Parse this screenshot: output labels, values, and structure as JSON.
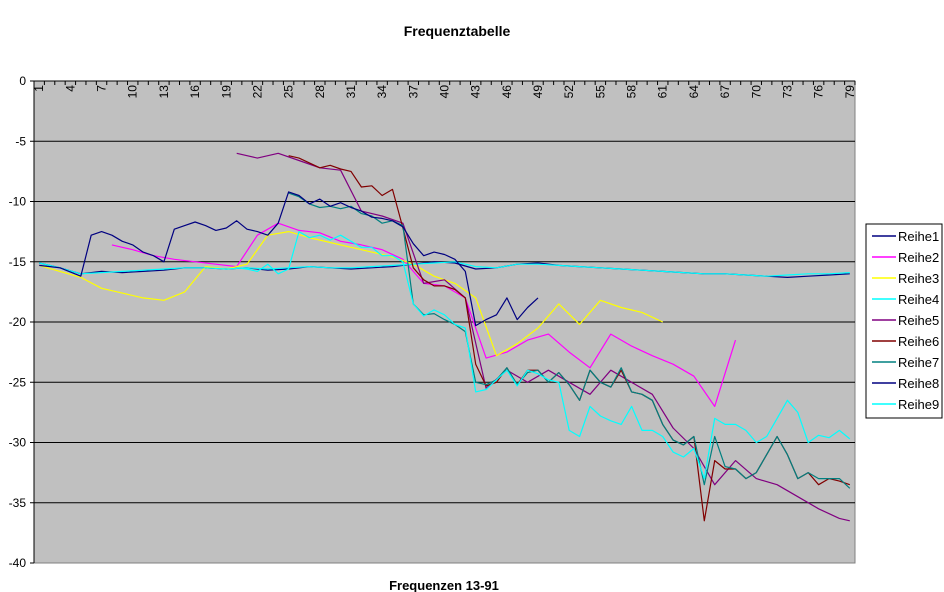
{
  "chart_data": {
    "type": "line",
    "title": "Frequenztabelle",
    "xlabel": "Frequenzen 13-91",
    "ylabel": "",
    "ylim": [
      -40,
      0
    ],
    "yticks": [
      0,
      -5,
      -10,
      -15,
      -20,
      -25,
      -30,
      -35,
      -40
    ],
    "xlim": [
      1,
      79
    ],
    "xticks": [
      1,
      4,
      7,
      10,
      13,
      16,
      19,
      22,
      25,
      28,
      31,
      34,
      37,
      40,
      43,
      46,
      49,
      52,
      55,
      58,
      61,
      64,
      67,
      70,
      73,
      76,
      79
    ],
    "grid": "horizontal",
    "legend_position": "right",
    "series": [
      {
        "name": "Reihe1",
        "color": "#000080",
        "x": [
          1,
          3,
          5,
          7,
          9,
          11,
          13,
          15,
          17,
          19,
          21,
          23,
          25,
          27,
          29,
          31,
          33,
          35,
          37,
          39,
          41,
          43,
          45,
          47,
          49,
          51,
          53,
          55,
          57,
          59,
          61,
          63,
          65,
          67,
          69,
          71,
          73,
          75,
          77,
          79
        ],
        "y": [
          -15.1,
          -15.5,
          -16,
          -15.8,
          -15.9,
          -15.8,
          -15.7,
          -15.5,
          -15.5,
          -15.6,
          -15.5,
          -15.7,
          -15.6,
          -15.4,
          -15.5,
          -15.6,
          -15.5,
          -15.4,
          -15.2,
          -15,
          -15.1,
          -15.6,
          -15.5,
          -15.2,
          -15.1,
          -15.3,
          -15.4,
          -15.5,
          -15.6,
          -15.7,
          -15.8,
          -15.9,
          -16,
          -16,
          -16.1,
          -16.2,
          -16.3,
          -16.2,
          -16.1,
          -16
        ]
      },
      {
        "name": "Reihe2",
        "color": "#ff00ff",
        "x": [
          8,
          10,
          12,
          14,
          16,
          18,
          20,
          22,
          24,
          26,
          28,
          30,
          32,
          34,
          36,
          38,
          40,
          42,
          44,
          46,
          48,
          50,
          52,
          54,
          56,
          58,
          60,
          62,
          64,
          66,
          68
        ],
        "y": [
          -13.6,
          -14.0,
          -14.5,
          -14.8,
          -15.0,
          -15.2,
          -15.4,
          -12.8,
          -11.8,
          -12.4,
          -12.6,
          -13.3,
          -13.6,
          -14.0,
          -14.8,
          -16.8,
          -17.0,
          -18.0,
          -23.0,
          -22.5,
          -21.5,
          -21.0,
          -22.5,
          -23.8,
          -21.0,
          -22.0,
          -22.8,
          -23.5,
          -24.5,
          -27.0,
          -21.5
        ]
      },
      {
        "name": "Reihe3",
        "color": "#ffff00",
        "x": [
          1,
          3,
          5,
          7,
          9,
          11,
          13,
          15,
          17,
          19,
          21,
          23,
          25,
          27,
          29,
          31,
          33,
          35,
          37,
          39,
          41,
          43,
          45,
          47,
          49,
          51,
          53,
          55,
          57,
          59,
          61
        ],
        "y": [
          -15.3,
          -15.8,
          -16.3,
          -17.2,
          -17.6,
          -18.0,
          -18.2,
          -17.5,
          -15.4,
          -15.6,
          -15.2,
          -12.8,
          -12.5,
          -13.0,
          -13.4,
          -13.8,
          -14.2,
          -14.6,
          -15.2,
          -16.2,
          -16.8,
          -18.0,
          -22.8,
          -21.8,
          -20.5,
          -18.5,
          -20.2,
          -18.2,
          -18.8,
          -19.2,
          -20.0
        ]
      },
      {
        "name": "Reihe4",
        "color": "#00ffff",
        "x": [
          1,
          3,
          5,
          7,
          9,
          11,
          13,
          15,
          17,
          19,
          21,
          23,
          25,
          27,
          29,
          31,
          33,
          35,
          37,
          39,
          41,
          43,
          45,
          47,
          49,
          51,
          53,
          55,
          57,
          59,
          61,
          63,
          65,
          67,
          69,
          71,
          73,
          75,
          77,
          79
        ],
        "y": [
          -15.1,
          -15.5,
          -16,
          -15.9,
          -15.8,
          -15.7,
          -15.6,
          -15.5,
          -15.5,
          -15.6,
          -15.5,
          -15.6,
          -15.5,
          -15.4,
          -15.5,
          -15.5,
          -15.4,
          -15.3,
          -15.2,
          -15.1,
          -15.0,
          -15.4,
          -15.5,
          -15.2,
          -15.2,
          -15.3,
          -15.4,
          -15.5,
          -15.6,
          -15.7,
          -15.8,
          -15.9,
          -16,
          -16,
          -16.1,
          -16.2,
          -16.1,
          -16.0,
          -16.0,
          -15.9
        ]
      },
      {
        "name": "Reihe5",
        "color": "#800080",
        "x": [
          20,
          22,
          24,
          26,
          28,
          30,
          32,
          34,
          36,
          38,
          40,
          42,
          44,
          46,
          48,
          50,
          52,
          54,
          56,
          58,
          60,
          62,
          64,
          66,
          68,
          70,
          72,
          74,
          76,
          78,
          79
        ],
        "y": [
          -6.0,
          -6.4,
          -6.0,
          -6.6,
          -7.2,
          -7.4,
          -10.8,
          -11.2,
          -11.8,
          -16.8,
          -16.5,
          -18.0,
          -25.5,
          -24.0,
          -25.0,
          -24.0,
          -25.0,
          -26.0,
          -24.0,
          -25.0,
          -26.0,
          -28.8,
          -30.5,
          -33.5,
          -31.5,
          -33.0,
          -33.5,
          -34.5,
          -35.5,
          -36.3,
          -36.5
        ]
      },
      {
        "name": "Reihe6",
        "color": "#800000",
        "x": [
          25,
          26,
          27,
          28,
          29,
          30,
          31,
          32,
          33,
          34,
          35,
          36,
          37,
          38,
          39,
          40,
          41,
          42,
          43,
          44,
          45,
          46,
          47,
          48,
          49,
          50,
          51,
          52,
          53,
          54,
          55,
          56,
          57,
          58,
          59,
          60,
          61,
          62,
          63,
          64,
          65,
          66,
          67,
          68,
          69,
          70,
          71,
          72,
          73,
          74,
          75,
          76,
          77,
          78,
          79
        ],
        "y": [
          -6.2,
          -6.4,
          -6.8,
          -7.2,
          -7.0,
          -7.3,
          -7.5,
          -8.8,
          -8.7,
          -9.5,
          -9.0,
          -12.2,
          -15.5,
          -16.5,
          -17.0,
          -17.0,
          -17.3,
          -18.0,
          -23.5,
          -25.3,
          -25.0,
          -23.8,
          -25.2,
          -24.0,
          -24.0,
          -25.0,
          -24.2,
          -25.2,
          -26.5,
          -24.0,
          -25.0,
          -25.4,
          -24.0,
          -25.8,
          -26.0,
          -26.5,
          -28.5,
          -29.8,
          -30.2,
          -29.5,
          -36.5,
          -31.5,
          -32.2,
          -32.2,
          -33.0,
          -32.5,
          -31.0,
          -29.5,
          -31.0,
          -33.0,
          -32.5,
          -33.5,
          -33.0,
          -33.2,
          -33.5
        ]
      },
      {
        "name": "Reihe7",
        "color": "#008080",
        "x": [
          25,
          26,
          27,
          28,
          29,
          30,
          31,
          32,
          33,
          34,
          35,
          36,
          37,
          38,
          39,
          40,
          41,
          42,
          43,
          44,
          45,
          46,
          47,
          48,
          49,
          50,
          51,
          52,
          53,
          54,
          55,
          56,
          57,
          58,
          59,
          60,
          61,
          62,
          63,
          64,
          65,
          66,
          67,
          68,
          69,
          70,
          71,
          72,
          73,
          74,
          75,
          76,
          77,
          78,
          79
        ],
        "y": [
          -9.3,
          -9.6,
          -10.2,
          -10.5,
          -10.4,
          -10.6,
          -10.4,
          -11.0,
          -11.2,
          -11.8,
          -11.6,
          -12.0,
          -18.5,
          -19.4,
          -19.3,
          -19.8,
          -20.2,
          -20.8,
          -25.0,
          -25.2,
          -24.8,
          -23.8,
          -25.2,
          -24.2,
          -24.0,
          -25.0,
          -24.2,
          -25.2,
          -26.5,
          -24.0,
          -25.0,
          -25.4,
          -23.8,
          -25.8,
          -26.0,
          -26.5,
          -28.5,
          -29.8,
          -30.2,
          -29.5,
          -33.5,
          -29.5,
          -32.0,
          -32.2,
          -33.0,
          -32.5,
          -31.0,
          -29.5,
          -31.0,
          -33.0,
          -32.5,
          -33.0,
          -33.0,
          -33.0,
          -33.8
        ]
      },
      {
        "name": "Reihe8",
        "color": "#000080",
        "x": [
          1,
          3,
          5,
          6,
          7,
          8,
          9,
          10,
          11,
          12,
          13,
          14,
          15,
          16,
          17,
          18,
          19,
          20,
          21,
          22,
          23,
          24,
          25,
          26,
          27,
          28,
          29,
          30,
          31,
          32,
          33,
          34,
          35,
          36,
          37,
          38,
          39,
          40,
          41,
          42,
          43,
          44,
          45,
          46,
          47,
          48,
          49
        ],
        "y": [
          -15.3,
          -15.5,
          -16.2,
          -12.8,
          -12.5,
          -12.8,
          -13.3,
          -13.6,
          -14.2,
          -14.5,
          -15.0,
          -12.3,
          -12.0,
          -11.7,
          -12.0,
          -12.4,
          -12.2,
          -11.6,
          -12.3,
          -12.5,
          -12.8,
          -11.8,
          -9.2,
          -9.5,
          -10.2,
          -9.8,
          -10.4,
          -10.1,
          -10.5,
          -10.8,
          -11.3,
          -11.4,
          -11.6,
          -12.1,
          -13.5,
          -14.5,
          -14.2,
          -14.4,
          -14.8,
          -15.8,
          -20.3,
          -19.8,
          -19.4,
          -18.0,
          -19.8,
          -18.8,
          -18.0
        ]
      },
      {
        "name": "Reihe9",
        "color": "#00ffff",
        "x": [
          20,
          21,
          22,
          23,
          24,
          25,
          26,
          27,
          28,
          29,
          30,
          31,
          32,
          33,
          34,
          35,
          36,
          37,
          38,
          39,
          40,
          41,
          42,
          43,
          44,
          45,
          46,
          47,
          48,
          49,
          50,
          51,
          52,
          53,
          54,
          55,
          56,
          57,
          58,
          59,
          60,
          61,
          62,
          63,
          64,
          65,
          66,
          67,
          68,
          69,
          70,
          71,
          72,
          73,
          74,
          75,
          76,
          77,
          78,
          79
        ],
        "y": [
          -15.5,
          -15.6,
          -15.8,
          -15.2,
          -16.0,
          -15.6,
          -12.5,
          -13.0,
          -12.8,
          -13.2,
          -12.8,
          -13.3,
          -13.8,
          -13.8,
          -14.5,
          -14.5,
          -15.0,
          -18.5,
          -19.5,
          -19.0,
          -19.4,
          -20.2,
          -20.5,
          -25.8,
          -25.6,
          -24.8,
          -24.0,
          -25.3,
          -24.0,
          -24.3,
          -24.8,
          -25.0,
          -29.0,
          -29.5,
          -27.0,
          -27.8,
          -28.2,
          -28.5,
          -27.0,
          -29.0,
          -29.0,
          -29.5,
          -30.8,
          -31.2,
          -30.5,
          -33.0,
          -28.0,
          -28.5,
          -28.5,
          -29.0,
          -30.0,
          -29.5,
          -28.0,
          -26.5,
          -27.5,
          -30.0,
          -29.4,
          -29.6,
          -29.0,
          -29.7
        ]
      }
    ]
  }
}
